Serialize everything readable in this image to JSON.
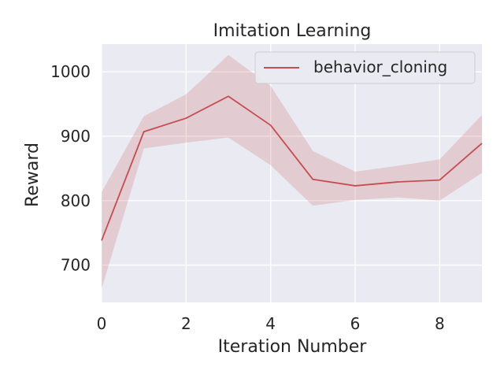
{
  "chart_data": {
    "type": "line",
    "title": "Imitation Learning",
    "xlabel": "Iteration Number",
    "ylabel": "Reward",
    "xlim": [
      0,
      9
    ],
    "ylim": [
      642,
      1043
    ],
    "xticks": [
      0,
      2,
      4,
      6,
      8
    ],
    "yticks": [
      700,
      800,
      900,
      1000
    ],
    "xtick_labels": [
      "0",
      "2",
      "4",
      "6",
      "8"
    ],
    "ytick_labels": [
      "700",
      "800",
      "900",
      "1000"
    ],
    "grid": true,
    "legend_position": "top-right",
    "series": [
      {
        "name": "behavior_cloning",
        "color": "#c44e52",
        "band_color": "#c44e52",
        "x": [
          0,
          1,
          2,
          3,
          4,
          5,
          6,
          7,
          8,
          9
        ],
        "y": [
          738,
          907,
          928,
          962,
          917,
          833,
          823,
          829,
          832,
          889
        ],
        "lower": [
          663,
          881,
          890,
          898,
          855,
          792,
          801,
          805,
          800,
          843
        ],
        "upper": [
          813,
          931,
          965,
          1026,
          978,
          877,
          845,
          854,
          864,
          933
        ]
      }
    ]
  }
}
